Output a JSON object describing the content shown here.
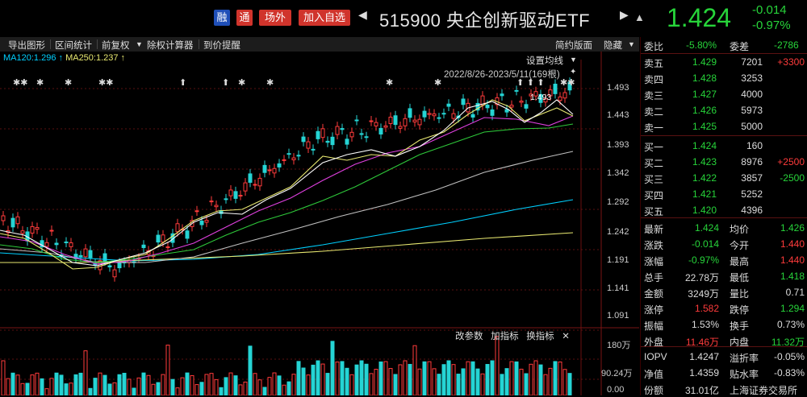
{
  "header": {
    "tags": [
      "融",
      "通",
      "场外",
      "加入自选"
    ],
    "title": "515900 央企创新驱动ETF",
    "price": "1.424",
    "change": "-0.014",
    "change_pct": "-0.97%"
  },
  "toolbar": {
    "items": [
      "导出图形",
      "区间统计",
      "前复权",
      "除权计算器",
      "到价提醒"
    ],
    "right": [
      "简约版面",
      "隐藏"
    ]
  },
  "chart": {
    "ma_labels": [
      "MA120:1.296",
      "MA250:1.237"
    ],
    "setting": "设置均线",
    "range": "2022/8/26-2023/5/11(169根)",
    "peak_label": "1.493",
    "y_ticks": [
      "1.493",
      "1.443",
      "1.393",
      "1.342",
      "1.292",
      "1.242",
      "1.191",
      "1.141",
      "1.091"
    ],
    "vol_toolbar": [
      "改参数",
      "加指标",
      "换指标"
    ],
    "vol_ticks": [
      "180万",
      "90.24万",
      "0.00"
    ]
  },
  "panel": {
    "top": {
      "label1": "委比",
      "val1": "-5.80%",
      "label2": "委差",
      "val2": "-2786"
    },
    "sell": [
      {
        "label": "卖五",
        "price": "1.429",
        "vol": "7201",
        "delta": "+3300"
      },
      {
        "label": "卖四",
        "price": "1.428",
        "vol": "3253",
        "delta": ""
      },
      {
        "label": "卖三",
        "price": "1.427",
        "vol": "4000",
        "delta": ""
      },
      {
        "label": "卖二",
        "price": "1.426",
        "vol": "5973",
        "delta": ""
      },
      {
        "label": "卖一",
        "price": "1.425",
        "vol": "5000",
        "delta": ""
      }
    ],
    "buy": [
      {
        "label": "买一",
        "price": "1.424",
        "vol": "160",
        "delta": ""
      },
      {
        "label": "买二",
        "price": "1.423",
        "vol": "8976",
        "delta": "+2500"
      },
      {
        "label": "买三",
        "price": "1.422",
        "vol": "3857",
        "delta": "-2500"
      },
      {
        "label": "买四",
        "price": "1.421",
        "vol": "5252",
        "delta": ""
      },
      {
        "label": "买五",
        "price": "1.420",
        "vol": "4396",
        "delta": ""
      }
    ],
    "stats": [
      {
        "l1": "最新",
        "v1": "1.424",
        "c1": "g",
        "l2": "均价",
        "v2": "1.426",
        "c2": "g"
      },
      {
        "l1": "涨跌",
        "v1": "-0.014",
        "c1": "g",
        "l2": "今开",
        "v2": "1.440",
        "c2": "r"
      },
      {
        "l1": "涨幅",
        "v1": "-0.97%",
        "c1": "g",
        "l2": "最高",
        "v2": "1.440",
        "c2": "r"
      },
      {
        "l1": "总手",
        "v1": "22.78万",
        "c1": "w",
        "l2": "最低",
        "v2": "1.418",
        "c2": "g"
      },
      {
        "l1": "金额",
        "v1": "3249万",
        "c1": "w",
        "l2": "量比",
        "v2": "0.71",
        "c2": "w"
      },
      {
        "l1": "涨停",
        "v1": "1.582",
        "c1": "r",
        "l2": "跌停",
        "v2": "1.294",
        "c2": "g"
      },
      {
        "l1": "振幅",
        "v1": "1.53%",
        "c1": "w",
        "l2": "换手",
        "v2": "0.73%",
        "c2": "w"
      },
      {
        "l1": "外盘",
        "v1": "11.46万",
        "c1": "r",
        "l2": "内盘",
        "v2": "11.32万",
        "c2": "g"
      }
    ],
    "extra": [
      {
        "l1": "IOPV",
        "v1": "1.4247",
        "l2": "溢折率",
        "v2": "-0.05%"
      },
      {
        "l1": "净值",
        "v1": "1.4359",
        "l2": "贴水率",
        "v2": "-0.83%"
      },
      {
        "l1": "份额",
        "v1": "31.01亿",
        "l2": "上海证券交易所",
        "v2": ""
      }
    ]
  },
  "colors": {
    "up": "#ff3b3b",
    "down": "#27d43a",
    "ma120": "#00d0ff",
    "ma250": "#e8e870"
  }
}
